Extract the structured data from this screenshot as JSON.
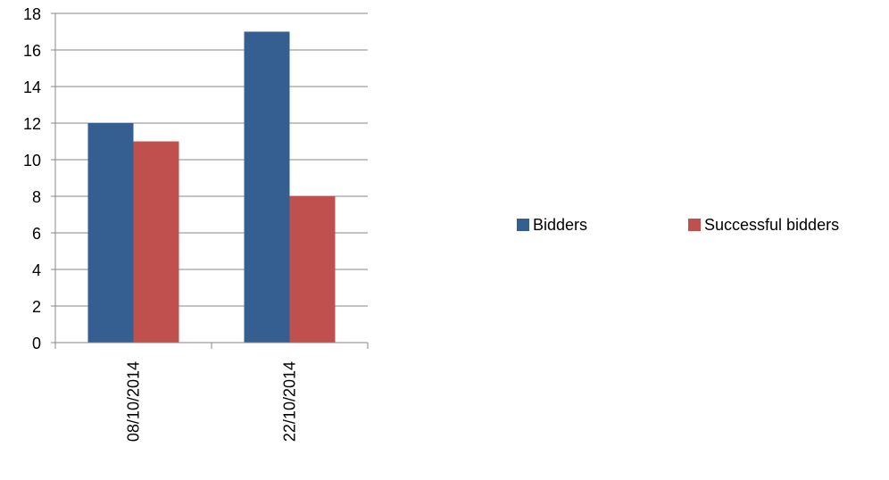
{
  "chart_data": {
    "type": "bar",
    "categories": [
      "08/10/2014",
      "22/10/2014"
    ],
    "series": [
      {
        "name": "Bidders",
        "values": [
          12,
          17
        ],
        "color": "#355F91"
      },
      {
        "name": "Successful bidders",
        "values": [
          11,
          8
        ],
        "color": "#C0504D"
      }
    ],
    "ylim": [
      0,
      18
    ],
    "yticks": [
      0,
      2,
      4,
      6,
      8,
      10,
      12,
      14,
      16,
      18
    ],
    "grid": true,
    "legend_position": "right"
  }
}
